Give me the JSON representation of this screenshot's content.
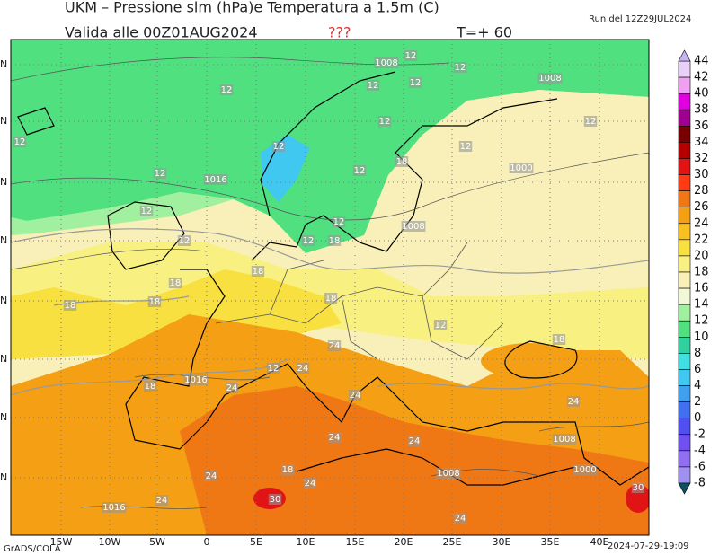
{
  "header": {
    "title": "UKM – Pressione slm (hPa)e Temperatura a 1.5m (C)",
    "valid": "Valida alle 00Z01AUG2024",
    "flag": "???",
    "lead": "T=+ 60",
    "run": "Run del 12Z29JUL2024"
  },
  "footer": {
    "left": "GrADS/COLA",
    "right": "2024-07-29-19:09"
  },
  "map": {
    "lon_labels": [
      "15W",
      "10W",
      "5W",
      "0",
      "5E",
      "10E",
      "15E",
      "20E",
      "25E",
      "30E",
      "35E",
      "40E"
    ],
    "lat_labels": [
      "N",
      "N",
      "N",
      "N",
      "N",
      "N",
      "N",
      "N"
    ],
    "contour_labels": [
      "1008",
      "12",
      "12",
      "1008",
      "12",
      "12",
      "12",
      "12",
      "12",
      "12",
      "12",
      "12",
      "12",
      "1016",
      "1000",
      "18",
      "12",
      "12",
      "12",
      "1008",
      "12",
      "12",
      "18",
      "18",
      "18",
      "18",
      "18",
      "18",
      "12",
      "24",
      "18",
      "24",
      "12",
      "1016",
      "24",
      "18",
      "24",
      "24",
      "24",
      "24",
      "1008",
      "1008",
      "1000",
      "24",
      "18",
      "24",
      "30",
      "30",
      "1016",
      "24",
      "24"
    ]
  },
  "colorbar": {
    "labels": [
      44,
      42,
      40,
      38,
      36,
      34,
      32,
      30,
      28,
      26,
      24,
      22,
      20,
      18,
      16,
      14,
      12,
      10,
      8,
      6,
      4,
      2,
      0,
      -2,
      -4,
      -6,
      -8
    ],
    "colors": [
      "#e8d0f8",
      "#f0a0f0",
      "#e000e0",
      "#a00090",
      "#780000",
      "#b40000",
      "#e01414",
      "#ff3c14",
      "#f07814",
      "#f5a014",
      "#f8c020",
      "#f8e040",
      "#f8f080",
      "#f8f0b8",
      "#f0f8d8",
      "#a0f0a0",
      "#50e080",
      "#30d0a0",
      "#40e0e0",
      "#40c8f0",
      "#40a0f0",
      "#4070f0",
      "#5050f0",
      "#7050f0",
      "#9070f0",
      "#a090f0"
    ],
    "over_color": "#c8b4f0",
    "under_color": "#105060"
  }
}
